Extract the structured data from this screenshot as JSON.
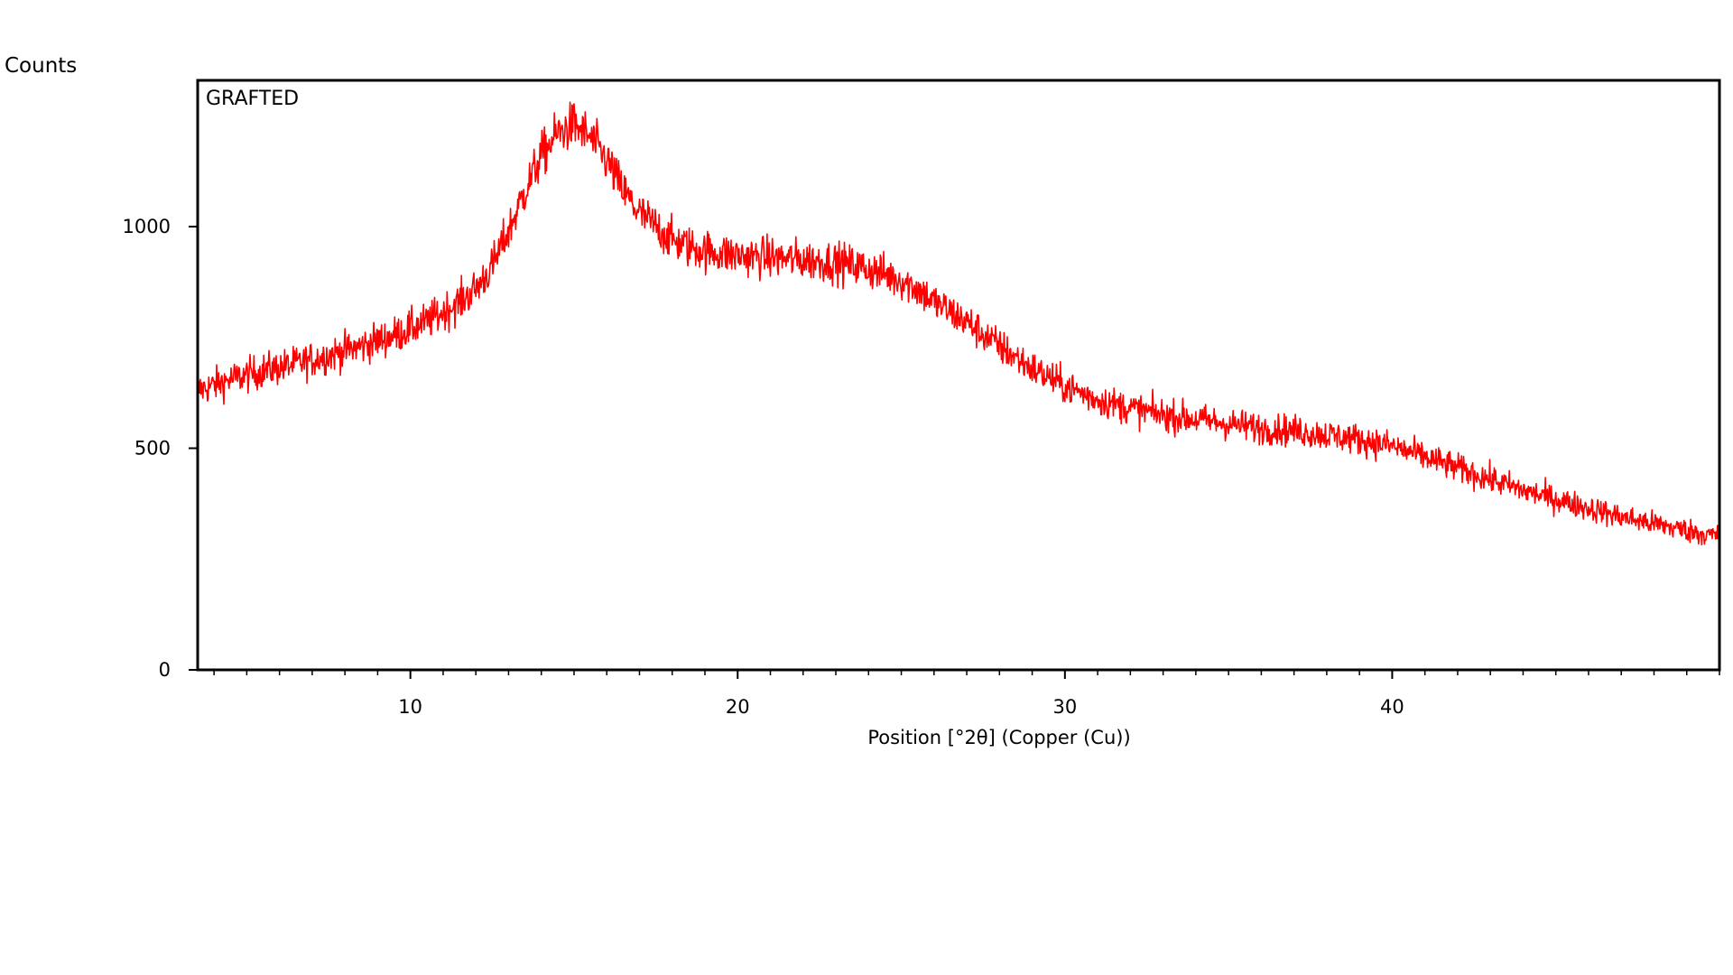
{
  "chart_data": {
    "type": "line",
    "ylabel": "Counts",
    "xlabel": "Position [°2θ] (Copper (Cu))",
    "panel_label": "GRAFTED",
    "xlim": [
      3.5,
      50
    ],
    "ylim": [
      0,
      1330
    ],
    "xticks": [
      10,
      20,
      30,
      40
    ],
    "xtick_labels": [
      "10",
      "20",
      "30",
      "40"
    ],
    "yticks": [
      0,
      500,
      1000
    ],
    "ytick_labels": [
      "0",
      "500",
      "1000"
    ],
    "grid": false,
    "series": [
      {
        "color": "#ff0000",
        "x": [
          3.5,
          4.5,
          5.5,
          6.5,
          7.5,
          8.5,
          9.5,
          10.5,
          11.5,
          12.0,
          12.5,
          13.0,
          13.5,
          14.0,
          14.5,
          15.0,
          15.5,
          16.0,
          16.5,
          17.0,
          17.5,
          18.0,
          18.5,
          19.0,
          20.0,
          21.0,
          22.0,
          23.0,
          24.0,
          25.0,
          25.5,
          26.0,
          27.0,
          28.0,
          29.0,
          30.0,
          31.0,
          32.0,
          33.0,
          34.0,
          35.0,
          36.0,
          37.0,
          38.0,
          39.0,
          40.0,
          41.0,
          42.0,
          43.0,
          44.0,
          45.0,
          46.0,
          47.0,
          48.0,
          49.0,
          50.0
        ],
        "y": [
          630,
          655,
          675,
          690,
          710,
          730,
          755,
          785,
          830,
          860,
          910,
          990,
          1080,
          1160,
          1210,
          1230,
          1200,
          1150,
          1080,
          1030,
          1000,
          970,
          955,
          945,
          935,
          930,
          925,
          920,
          905,
          880,
          860,
          830,
          785,
          730,
          680,
          640,
          610,
          590,
          575,
          565,
          555,
          545,
          540,
          530,
          520,
          505,
          480,
          455,
          430,
          405,
          385,
          365,
          345,
          330,
          315,
          300
        ]
      }
    ]
  },
  "colors": {
    "series": "#ff0000",
    "axes": "#000000",
    "background": "#ffffff"
  }
}
